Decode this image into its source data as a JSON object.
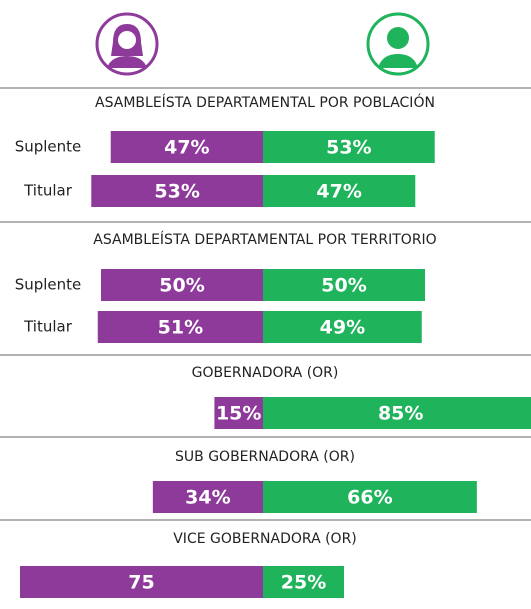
{
  "chart_data": {
    "type": "diverging_bar",
    "colors": [
      "#8e3a9b",
      "#1fb35b"
    ],
    "sections": [
      {
        "title": "ASAMBLEÍSTA DEPARTAMENTAL POR POBLACIÓN",
        "rows": [
          {
            "label": "Suplente",
            "values": [
              47,
              53
            ],
            "value_labels": [
              "47%",
              "53%"
            ]
          },
          {
            "label": "Titular",
            "values": [
              53,
              47
            ],
            "value_labels": [
              "53%",
              "47%"
            ]
          }
        ]
      },
      {
        "title": "ASAMBLEÍSTA DEPARTAMENTAL POR TERRITORIO",
        "rows": [
          {
            "label": "Suplente",
            "values": [
              50,
              50
            ],
            "value_labels": [
              "50%",
              "50%"
            ]
          },
          {
            "label": "Titular",
            "values": [
              51,
              49
            ],
            "value_labels": [
              "51%",
              "49%"
            ]
          }
        ]
      },
      {
        "title": "GOBERNADORA (OR)",
        "rows": [
          {
            "values": [
              15,
              85
            ],
            "value_labels": [
              "15%",
              "85%"
            ]
          }
        ]
      },
      {
        "title": "SUB GOBERNADORA (OR)",
        "rows": [
          {
            "values": [
              34,
              66
            ],
            "value_labels": [
              "34%",
              "66%"
            ]
          }
        ]
      },
      {
        "title": "VICE GOBERNADORA (OR)",
        "rows": [
          {
            "values": [
              75,
              25
            ],
            "value_labels": [
              "75",
              "25%"
            ]
          }
        ]
      }
    ]
  }
}
